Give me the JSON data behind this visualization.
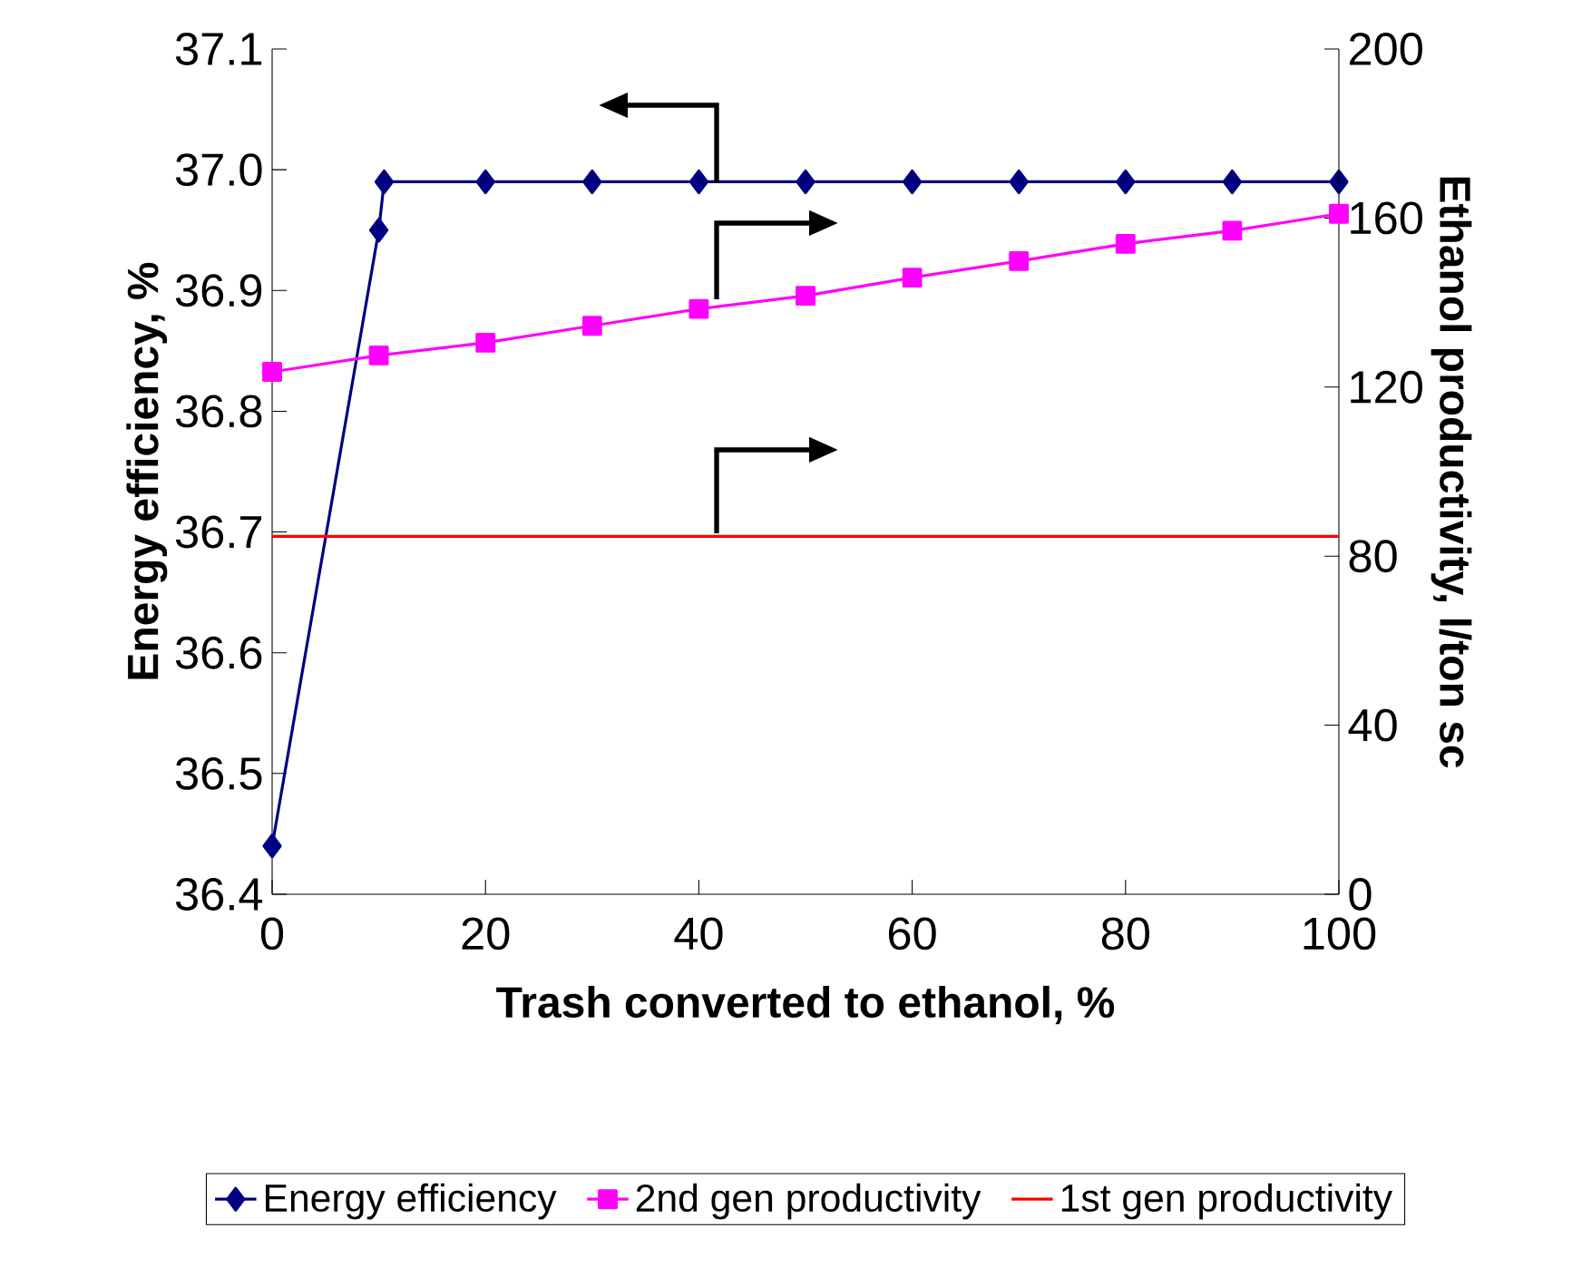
{
  "chart_data": {
    "type": "line",
    "xlabel": "Trash converted to ethanol, %",
    "ylabel": "Energy efficiency, %",
    "y2label": "Ethanol productivity, l/ton sc",
    "xlim": [
      0,
      100
    ],
    "xticks": [
      0,
      20,
      40,
      60,
      80,
      100
    ],
    "ylim": [
      36.4,
      37.1
    ],
    "yticks": [
      36.4,
      36.5,
      36.6,
      36.7,
      36.8,
      36.9,
      {
        "value": 37.0,
        "label": "37.0"
      },
      37.1
    ],
    "y2lim": [
      0,
      200
    ],
    "y2ticks": [
      0,
      40,
      80,
      120,
      160,
      200
    ],
    "legend": "bottom",
    "grid": false,
    "series": [
      {
        "name": "Energy efficiency",
        "color": "#000080",
        "marker": "diamond",
        "x": [
          0,
          10,
          10.5,
          20,
          30,
          40,
          50,
          60,
          70,
          80,
          90,
          100
        ],
        "values": [
          36.44,
          36.95,
          36.99,
          36.99,
          36.99,
          36.99,
          36.99,
          36.99,
          36.99,
          36.99,
          36.99,
          36.99
        ]
      },
      {
        "name": "2nd gen productivity",
        "color": "#ff00ff",
        "marker": "square",
        "axis": "y2",
        "x": [
          0,
          10,
          20,
          30,
          40,
          50,
          60,
          70,
          80,
          90,
          100
        ],
        "values": [
          123.6,
          127.5,
          130.5,
          134.5,
          138.5,
          141.6,
          145.9,
          149.8,
          153.9,
          157,
          161
        ]
      },
      {
        "name": "1st gen productivity",
        "color": "#ff0000",
        "marker": "none",
        "axis": "y2",
        "x": [
          0,
          100
        ],
        "values": [
          84.7,
          84.7
        ]
      }
    ]
  }
}
